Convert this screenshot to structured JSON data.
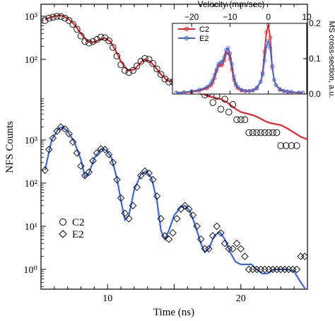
{
  "chart_data": [
    {
      "type": "scatter",
      "panel": "main",
      "xlabel": "Time (ns)",
      "ylabel": "NFS Counts",
      "xlim": [
        5,
        25
      ],
      "x_ticks": [
        10,
        20
      ],
      "y_scale": "log",
      "stacked_decades": 2,
      "upper_y_ticks": [
        "10³",
        "10²"
      ],
      "lower_y_ticks": [
        "10³",
        "10²",
        "10¹",
        "10⁰"
      ],
      "legend": {
        "placement": "bottom-left",
        "entries": [
          {
            "name": "C2",
            "marker": "circle"
          },
          {
            "name": "E2",
            "marker": "diamond"
          }
        ]
      },
      "series": [
        {
          "name": "C2",
          "marker": "circle",
          "points": [
            [
              5.3,
              800
            ],
            [
              5.6,
              900
            ],
            [
              5.9,
              950
            ],
            [
              6.2,
              1000
            ],
            [
              6.5,
              980
            ],
            [
              6.8,
              900
            ],
            [
              7.1,
              800
            ],
            [
              7.4,
              650
            ],
            [
              7.7,
              500
            ],
            [
              8.0,
              350
            ],
            [
              8.3,
              260
            ],
            [
              8.6,
              240
            ],
            [
              8.9,
              260
            ],
            [
              9.2,
              290
            ],
            [
              9.5,
              330
            ],
            [
              9.8,
              320
            ],
            [
              10.1,
              270
            ],
            [
              10.4,
              190
            ],
            [
              10.7,
              120
            ],
            [
              11.0,
              75
            ],
            [
              11.3,
              55
            ],
            [
              11.6,
              50
            ],
            [
              11.9,
              55
            ],
            [
              12.2,
              70
            ],
            [
              12.5,
              90
            ],
            [
              12.8,
              105
            ],
            [
              13.1,
              100
            ],
            [
              13.4,
              80
            ],
            [
              13.7,
              60
            ],
            [
              14.0,
              45
            ],
            [
              14.3,
              35
            ],
            [
              14.6,
              30
            ],
            [
              14.9,
              30
            ],
            [
              15.2,
              35
            ],
            [
              15.5,
              40
            ],
            [
              15.8,
              38
            ],
            [
              16.1,
              32
            ],
            [
              16.4,
              25
            ],
            [
              16.7,
              20
            ],
            [
              17.0,
              18
            ],
            [
              17.3,
              15
            ],
            [
              17.6,
              17
            ],
            [
              17.9,
              10
            ],
            [
              18.2,
              14
            ],
            [
              18.5,
              7
            ],
            [
              18.8,
              12
            ],
            [
              19.1,
              6
            ],
            [
              19.4,
              9
            ],
            [
              19.7,
              4
            ],
            [
              20.0,
              4
            ],
            [
              20.3,
              4
            ],
            [
              20.6,
              2
            ],
            [
              20.9,
              2
            ],
            [
              21.2,
              2
            ],
            [
              21.5,
              2
            ],
            [
              21.8,
              2
            ],
            [
              22.1,
              2
            ],
            [
              22.4,
              2
            ],
            [
              22.7,
              2
            ],
            [
              23.0,
              1
            ],
            [
              23.4,
              1
            ],
            [
              23.8,
              1
            ],
            [
              24.2,
              1
            ]
          ],
          "fit": [
            [
              5.3,
              850
            ],
            [
              6.0,
              1000
            ],
            [
              6.5,
              1050
            ],
            [
              7.0,
              900
            ],
            [
              7.5,
              650
            ],
            [
              8.0,
              400
            ],
            [
              8.5,
              260
            ],
            [
              9.0,
              250
            ],
            [
              9.5,
              300
            ],
            [
              9.8,
              310
            ],
            [
              10.2,
              260
            ],
            [
              10.6,
              160
            ],
            [
              11.0,
              90
            ],
            [
              11.5,
              55
            ],
            [
              12.0,
              58
            ],
            [
              12.5,
              85
            ],
            [
              12.8,
              100
            ],
            [
              13.2,
              90
            ],
            [
              13.6,
              65
            ],
            [
              14.0,
              45
            ],
            [
              14.5,
              32
            ],
            [
              15.0,
              30
            ],
            [
              15.5,
              34
            ],
            [
              16.0,
              30
            ],
            [
              16.5,
              22
            ],
            [
              17.0,
              17
            ],
            [
              17.5,
              14
            ],
            [
              18.0,
              13
            ],
            [
              18.5,
              12
            ],
            [
              19.0,
              10
            ],
            [
              19.5,
              7.5
            ],
            [
              20.0,
              6
            ],
            [
              20.5,
              5.5
            ],
            [
              21.0,
              5
            ],
            [
              21.5,
              4.2
            ],
            [
              22.0,
              3.5
            ],
            [
              22.5,
              3.2
            ],
            [
              23.0,
              3.0
            ],
            [
              23.5,
              2.5
            ],
            [
              24.0,
              2.0
            ],
            [
              24.5,
              1.6
            ],
            [
              25.0,
              1.4
            ]
          ]
        },
        {
          "name": "E2",
          "marker": "diamond",
          "points": [
            [
              5.3,
              200
            ],
            [
              5.6,
              600
            ],
            [
              5.9,
              1100
            ],
            [
              6.2,
              1600
            ],
            [
              6.5,
              2000
            ],
            [
              6.8,
              1800
            ],
            [
              7.1,
              1400
            ],
            [
              7.4,
              900
            ],
            [
              7.7,
              500
            ],
            [
              8.0,
              250
            ],
            [
              8.3,
              150
            ],
            [
              8.6,
              180
            ],
            [
              8.9,
              330
            ],
            [
              9.2,
              500
            ],
            [
              9.5,
              620
            ],
            [
              9.8,
              600
            ],
            [
              10.1,
              460
            ],
            [
              10.4,
              300
            ],
            [
              10.7,
              120
            ],
            [
              11.0,
              45
            ],
            [
              11.3,
              20
            ],
            [
              11.6,
              15
            ],
            [
              11.9,
              30
            ],
            [
              12.2,
              80
            ],
            [
              12.5,
              150
            ],
            [
              12.8,
              190
            ],
            [
              13.1,
              170
            ],
            [
              13.4,
              120
            ],
            [
              13.7,
              50
            ],
            [
              14.0,
              15
            ],
            [
              14.3,
              6
            ],
            [
              14.6,
              5
            ],
            [
              14.9,
              7
            ],
            [
              15.2,
              15
            ],
            [
              15.5,
              25
            ],
            [
              15.8,
              30
            ],
            [
              16.1,
              25
            ],
            [
              16.4,
              18
            ],
            [
              16.7,
              10
            ],
            [
              17.0,
              5
            ],
            [
              17.3,
              3
            ],
            [
              17.6,
              3
            ],
            [
              17.9,
              6
            ],
            [
              18.2,
              10
            ],
            [
              18.5,
              7
            ],
            [
              18.8,
              4
            ],
            [
              19.1,
              3
            ],
            [
              19.4,
              3
            ],
            [
              19.7,
              4
            ],
            [
              20.0,
              3
            ],
            [
              20.3,
              2
            ],
            [
              20.6,
              1
            ],
            [
              20.9,
              1
            ],
            [
              21.2,
              1
            ],
            [
              21.5,
              1
            ],
            [
              21.8,
              1
            ],
            [
              22.1,
              1
            ],
            [
              22.4,
              1
            ],
            [
              22.7,
              1
            ],
            [
              23.0,
              1
            ],
            [
              23.3,
              1
            ],
            [
              23.6,
              1
            ],
            [
              23.9,
              1
            ],
            [
              24.2,
              1
            ],
            [
              24.5,
              2
            ],
            [
              24.8,
              2
            ]
          ],
          "fit": [
            [
              5.3,
              200
            ],
            [
              5.8,
              1000
            ],
            [
              6.3,
              1800
            ],
            [
              6.6,
              2000
            ],
            [
              7.0,
              1600
            ],
            [
              7.5,
              900
            ],
            [
              8.0,
              350
            ],
            [
              8.3,
              140
            ],
            [
              8.6,
              170
            ],
            [
              9.0,
              380
            ],
            [
              9.5,
              620
            ],
            [
              9.9,
              580
            ],
            [
              10.3,
              380
            ],
            [
              10.7,
              130
            ],
            [
              11.0,
              40
            ],
            [
              11.3,
              14
            ],
            [
              11.6,
              18
            ],
            [
              12.0,
              70
            ],
            [
              12.5,
              160
            ],
            [
              12.9,
              190
            ],
            [
              13.3,
              130
            ],
            [
              13.7,
              40
            ],
            [
              14.0,
              8
            ],
            [
              14.3,
              5
            ],
            [
              14.6,
              8
            ],
            [
              15.0,
              18
            ],
            [
              15.5,
              28
            ],
            [
              15.8,
              30
            ],
            [
              16.2,
              22
            ],
            [
              16.6,
              10
            ],
            [
              17.0,
              4
            ],
            [
              17.3,
              2.5
            ],
            [
              17.6,
              3
            ],
            [
              18.0,
              6
            ],
            [
              18.4,
              7.5
            ],
            [
              18.8,
              5
            ],
            [
              19.2,
              2.5
            ],
            [
              19.6,
              1.5
            ],
            [
              20.0,
              1.3
            ],
            [
              20.4,
              1.3
            ],
            [
              20.8,
              1.3
            ],
            [
              21.2,
              1
            ],
            [
              21.6,
              0.8
            ],
            [
              22.0,
              0.8
            ],
            [
              22.5,
              1
            ],
            [
              23.0,
              1
            ],
            [
              23.5,
              1
            ],
            [
              24.0,
              0.9
            ],
            [
              24.5,
              0.5
            ],
            [
              25.0,
              0.3
            ]
          ]
        }
      ]
    },
    {
      "type": "line",
      "panel": "inset",
      "placement": "top-right",
      "xlabel": "Velocity (mm/sec)",
      "ylabel": "MS cross-section, a.u.",
      "xlim": [
        -25,
        10
      ],
      "ylim": [
        0,
        0.2
      ],
      "x_ticks": [
        -20,
        -10,
        0,
        10
      ],
      "y_ticks": [
        0.0,
        0.1,
        0.2
      ],
      "x_tick_labels": [
        "−20",
        "−10",
        "0",
        "10"
      ],
      "y_tick_labels": [
        "0.0",
        "0.1",
        "0.2"
      ],
      "legend": {
        "placement": "top-left",
        "entries": [
          "C2",
          "E2"
        ]
      },
      "series": [
        {
          "name": "C2",
          "color": "#e8242a",
          "x": [
            -24,
            -22,
            -20,
            -18,
            -16,
            -15,
            -14.5,
            -14,
            -13.5,
            -13,
            -12.5,
            -12,
            -11.5,
            -11,
            -10.5,
            -10,
            -9.5,
            -9,
            -8.5,
            -8,
            -7,
            -6,
            -5,
            -4,
            -3,
            -2,
            -1.5,
            -1,
            -0.5,
            0,
            0.5,
            1,
            1.5,
            2,
            3,
            4,
            5,
            6,
            8,
            9
          ],
          "values": [
            0.003,
            0.004,
            0.006,
            0.009,
            0.016,
            0.024,
            0.032,
            0.045,
            0.065,
            0.08,
            0.082,
            0.082,
            0.095,
            0.115,
            0.118,
            0.1,
            0.07,
            0.04,
            0.025,
            0.016,
            0.01,
            0.008,
            0.008,
            0.01,
            0.016,
            0.035,
            0.06,
            0.12,
            0.175,
            0.195,
            0.16,
            0.08,
            0.04,
            0.025,
            0.012,
            0.008,
            0.006,
            0.005,
            0.003,
            0.003
          ]
        },
        {
          "name": "E2",
          "color": "#3b68d9",
          "x": [
            -24,
            -22,
            -20,
            -18,
            -16,
            -15,
            -14.5,
            -14,
            -13.5,
            -13,
            -12.5,
            -12,
            -11.5,
            -11,
            -10.5,
            -10,
            -9.5,
            -9,
            -8.5,
            -8,
            -7,
            -6,
            -5,
            -4,
            -3,
            -2,
            -1.5,
            -1,
            -0.5,
            0,
            0.5,
            1,
            1.5,
            2,
            3,
            4,
            5,
            6,
            8,
            9
          ],
          "values": [
            0.004,
            0.005,
            0.008,
            0.012,
            0.02,
            0.03,
            0.04,
            0.055,
            0.07,
            0.085,
            0.09,
            0.092,
            0.105,
            0.125,
            0.13,
            0.115,
            0.085,
            0.05,
            0.03,
            0.02,
            0.012,
            0.009,
            0.009,
            0.011,
            0.018,
            0.035,
            0.055,
            0.095,
            0.135,
            0.15,
            0.13,
            0.075,
            0.04,
            0.025,
            0.014,
            0.009,
            0.007,
            0.006,
            0.004,
            0.004
          ]
        }
      ]
    }
  ],
  "colors": {
    "c2_fit": "#e8242a",
    "e2_fit": "#3b68d9",
    "markers": "#000000"
  }
}
